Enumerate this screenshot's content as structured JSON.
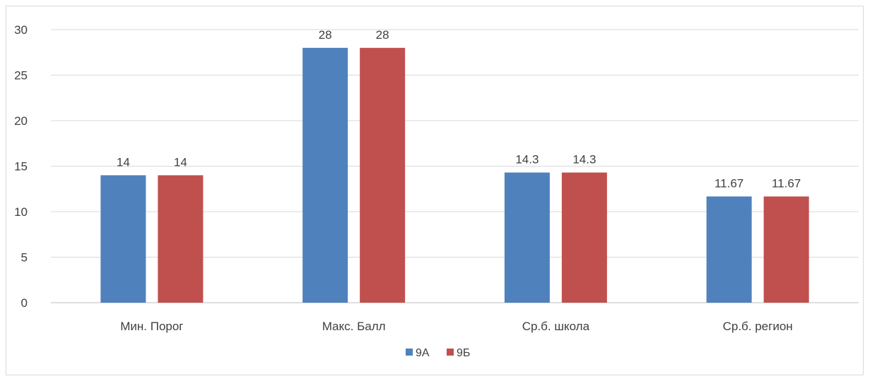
{
  "chart_data": {
    "type": "bar",
    "categories": [
      "Мин. Порог",
      "Макс. Балл",
      "Ср.б. школа",
      "Ср.б. регион"
    ],
    "series": [
      {
        "name": "9А",
        "values": [
          14,
          28,
          14.3,
          11.67
        ],
        "color": "#4F81BD"
      },
      {
        "name": "9Б",
        "values": [
          14,
          28,
          14.3,
          11.67
        ],
        "color": "#C0504D"
      }
    ],
    "ylim": [
      0,
      30
    ],
    "yticks": [
      0,
      5,
      10,
      15,
      20,
      25,
      30
    ],
    "grid": true,
    "legend": "bottom",
    "data_labels": true
  }
}
